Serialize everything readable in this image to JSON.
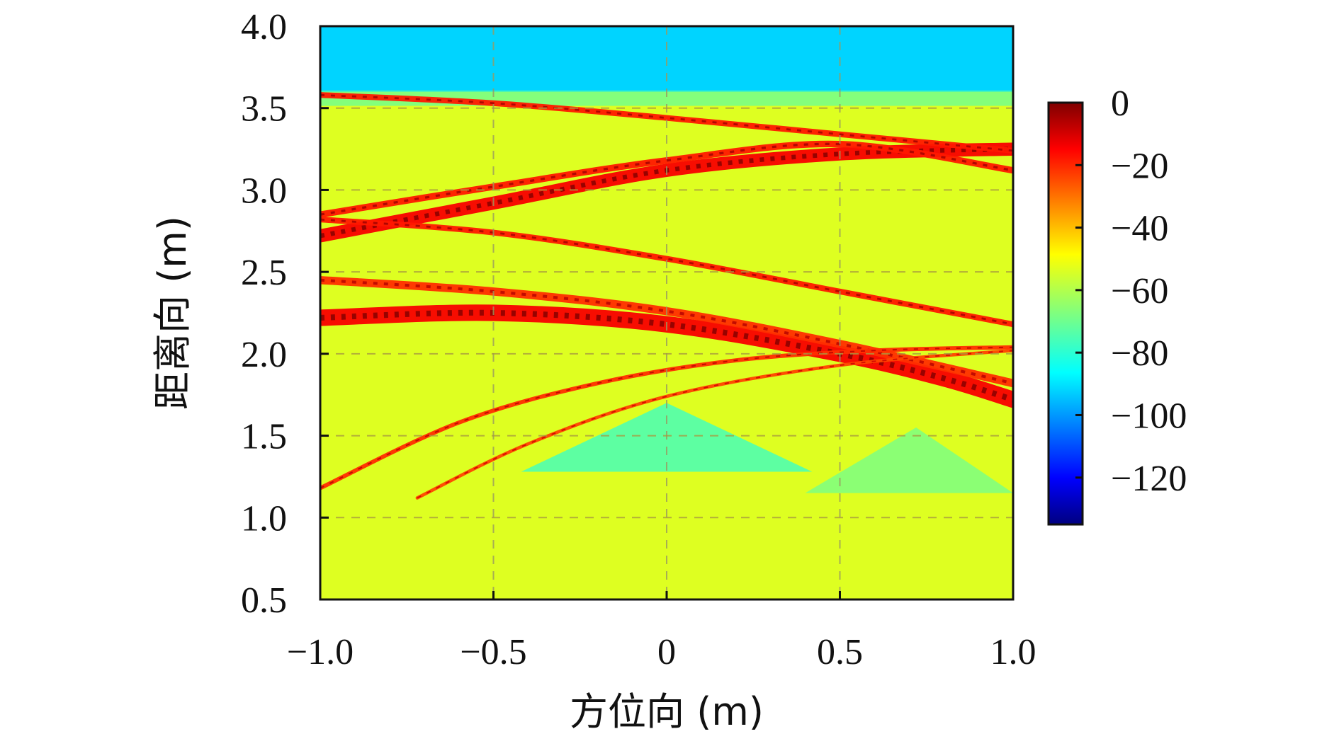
{
  "chart_data": {
    "type": "heatmap",
    "title": "",
    "xlabel": "方位向 (m)",
    "ylabel": "距离向 (m)",
    "xlim": [
      -1.0,
      1.0
    ],
    "ylim": [
      0.5,
      4.0
    ],
    "x_ticks": [
      {
        "value": -1.0,
        "label": "−1.0"
      },
      {
        "value": -0.5,
        "label": "−0.5"
      },
      {
        "value": 0,
        "label": "0"
      },
      {
        "value": 0.5,
        "label": "0.5"
      },
      {
        "value": 1.0,
        "label": "1.0"
      }
    ],
    "y_ticks": [
      {
        "value": 0.5,
        "label": "0.5"
      },
      {
        "value": 1.0,
        "label": "1.0"
      },
      {
        "value": 1.5,
        "label": "1.5"
      },
      {
        "value": 2.0,
        "label": "2.0"
      },
      {
        "value": 2.5,
        "label": "2.5"
      },
      {
        "value": 3.0,
        "label": "3.0"
      },
      {
        "value": 3.5,
        "label": "3.5"
      },
      {
        "value": 4.0,
        "label": "4.0"
      }
    ],
    "grid": "dashed, at major ticks",
    "colorbar": {
      "range": [
        -135,
        0
      ],
      "colormap": "jet",
      "ticks": [
        {
          "value": 0,
          "label": "0"
        },
        {
          "value": -20,
          "label": "−20"
        },
        {
          "value": -40,
          "label": "−40"
        },
        {
          "value": -60,
          "label": "−60"
        },
        {
          "value": -80,
          "label": "−80"
        },
        {
          "value": -100,
          "label": "−100"
        },
        {
          "value": -120,
          "label": "−120"
        }
      ]
    },
    "background_level_db": -55,
    "top_band": {
      "y_from": 3.6,
      "y_to": 4.0,
      "level_db": -90
    },
    "weak_triangles": [
      {
        "apex": [
          0.0,
          1.7
        ],
        "base_left": [
          -0.42,
          1.28
        ],
        "base_right": [
          0.42,
          1.28
        ],
        "level_db": -75
      },
      {
        "apex": [
          0.72,
          1.55
        ],
        "base_left": [
          0.4,
          1.15
        ],
        "base_right": [
          1.0,
          1.15
        ],
        "level_db": -68
      }
    ],
    "strong_curves": [
      {
        "points": [
          [
            -1.0,
            2.72
          ],
          [
            -0.5,
            2.92
          ],
          [
            0.0,
            3.12
          ],
          [
            0.5,
            3.22
          ],
          [
            1.0,
            3.25
          ]
        ],
        "width_m": 0.08,
        "level_db": -8
      },
      {
        "points": [
          [
            -1.0,
            2.85
          ],
          [
            -0.5,
            3.02
          ],
          [
            0.0,
            3.18
          ],
          [
            0.5,
            3.28
          ],
          [
            1.0,
            3.12
          ]
        ],
        "width_m": 0.04,
        "level_db": -12
      },
      {
        "points": [
          [
            -1.0,
            2.22
          ],
          [
            -0.5,
            2.25
          ],
          [
            0.0,
            2.18
          ],
          [
            0.5,
            2.0
          ],
          [
            0.8,
            1.85
          ],
          [
            1.0,
            1.72
          ]
        ],
        "width_m": 0.1,
        "level_db": -8
      },
      {
        "points": [
          [
            -1.0,
            2.45
          ],
          [
            -0.5,
            2.38
          ],
          [
            0.0,
            2.26
          ],
          [
            0.5,
            2.06
          ],
          [
            1.0,
            1.82
          ]
        ],
        "width_m": 0.05,
        "level_db": -15
      },
      {
        "points": [
          [
            -1.0,
            3.58
          ],
          [
            -0.5,
            3.53
          ],
          [
            0.0,
            3.44
          ],
          [
            0.5,
            3.34
          ],
          [
            1.0,
            3.24
          ]
        ],
        "width_m": 0.035,
        "level_db": -12
      },
      {
        "points": [
          [
            -1.0,
            2.82
          ],
          [
            -0.5,
            2.74
          ],
          [
            0.0,
            2.58
          ],
          [
            0.5,
            2.38
          ],
          [
            1.0,
            2.18
          ]
        ],
        "width_m": 0.035,
        "level_db": -12
      },
      {
        "points": [
          [
            -1.0,
            1.18
          ],
          [
            -0.6,
            1.58
          ],
          [
            -0.2,
            1.82
          ],
          [
            0.2,
            1.96
          ],
          [
            0.6,
            2.02
          ],
          [
            1.0,
            2.04
          ]
        ],
        "width_m": 0.025,
        "level_db": -15
      },
      {
        "points": [
          [
            -0.72,
            1.12
          ],
          [
            -0.4,
            1.45
          ],
          [
            0.0,
            1.74
          ],
          [
            0.5,
            1.93
          ],
          [
            1.0,
            2.02
          ]
        ],
        "width_m": 0.02,
        "level_db": -18
      }
    ]
  }
}
